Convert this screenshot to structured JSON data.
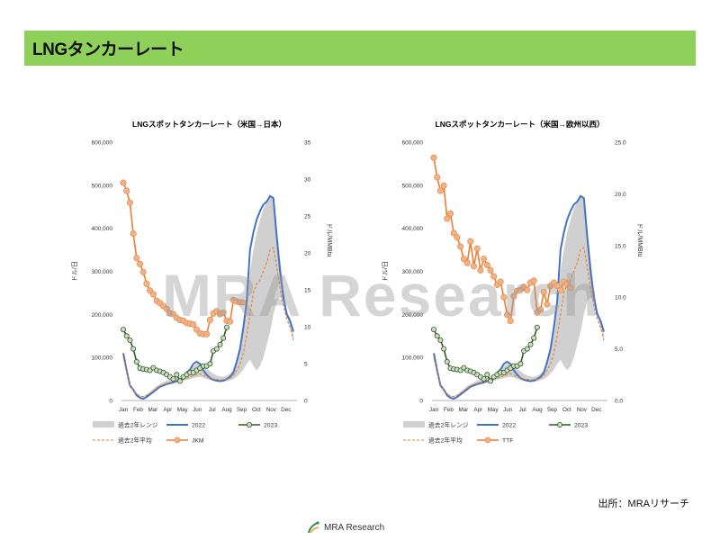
{
  "header": {
    "title": "LNGタンカーレート"
  },
  "watermark": "MRA Research",
  "source": "出所：MRAリサーチ",
  "footer": {
    "logo_text": "MRA Research"
  },
  "colors": {
    "header_bg": "#8fd05b",
    "range": "#d0d0d0",
    "y2022": "#4472c4",
    "y2023": "#375623",
    "avg": "#ed7d31",
    "price": "#ed7d31",
    "price_marker": "#f4b183"
  },
  "months": [
    "Jan",
    "Feb",
    "Mar",
    "Apr",
    "May",
    "Jun",
    "Jul",
    "Aug",
    "Sep",
    "Oct",
    "Nov",
    "Dec"
  ],
  "legend_labels": {
    "range": "過去2年レンジ",
    "y2022": "2022",
    "y2023": "2023",
    "avg": "過去2年平均"
  },
  "chart_data": [
    {
      "type": "line",
      "title": "LNGスポットタンカーレート（米国→日本）",
      "ylabel": "ドル/日",
      "y2label": "ドル/MMBtu",
      "ylim": [
        0,
        600000
      ],
      "y2lim": [
        0,
        35
      ],
      "yticks": [
        "0",
        "100,000",
        "200,000",
        "300,000",
        "400,000",
        "500,000",
        "600,000"
      ],
      "y2ticks": [
        "0",
        "5",
        "10",
        "15",
        "20",
        "25",
        "30",
        "35"
      ],
      "x_weeks": 52,
      "series": [
        {
          "name": "過去2年レンジ",
          "kind": "range",
          "upper": [
            110000,
            75000,
            40000,
            28000,
            18000,
            12000,
            10000,
            14000,
            20000,
            27000,
            34000,
            38000,
            42000,
            46000,
            48000,
            50000,
            53000,
            56000,
            60000,
            65000,
            72000,
            80000,
            85000,
            88000,
            82000,
            75000,
            68000,
            62000,
            58000,
            56000,
            55000,
            58000,
            62000,
            70000,
            90000,
            120000,
            170000,
            230000,
            300000,
            350000,
            390000,
            420000,
            445000,
            460000,
            475000,
            468000,
            400000,
            330000,
            260000,
            210000,
            190000,
            155000
          ],
          "lower": [
            95000,
            62000,
            33000,
            22000,
            13000,
            9000,
            8000,
            11000,
            16000,
            22000,
            27000,
            31000,
            34000,
            37000,
            39000,
            40000,
            42000,
            44000,
            46000,
            48000,
            50000,
            52000,
            54000,
            55000,
            53000,
            50000,
            48000,
            46000,
            45000,
            44000,
            44000,
            45000,
            47000,
            50000,
            55000,
            62000,
            72000,
            85000,
            95000,
            80000,
            70000,
            80000,
            100000,
            130000,
            160000,
            200000,
            230000,
            240000,
            230000,
            200000,
            170000,
            140000
          ]
        },
        {
          "name": "2022",
          "kind": "line",
          "values": [
            110000,
            70000,
            35000,
            25000,
            12000,
            6000,
            4000,
            8000,
            14000,
            20000,
            26000,
            32000,
            35000,
            38000,
            40000,
            42000,
            45000,
            48000,
            55000,
            65000,
            72000,
            85000,
            90000,
            85000,
            70000,
            60000,
            52000,
            48000,
            46000,
            45000,
            46000,
            50000,
            55000,
            65000,
            90000,
            120000,
            170000,
            230000,
            350000,
            390000,
            420000,
            440000,
            455000,
            462000,
            475000,
            470000,
            380000,
            300000,
            240000,
            200000,
            185000,
            160000
          ]
        },
        {
          "name": "過去2年平均",
          "kind": "dashed",
          "values": [
            100000,
            68000,
            36000,
            24000,
            14000,
            10000,
            9000,
            12000,
            17000,
            23000,
            29000,
            34000,
            37000,
            40000,
            42000,
            44000,
            46000,
            48000,
            50000,
            52000,
            54000,
            58000,
            60000,
            62000,
            58000,
            55000,
            52000,
            50000,
            49000,
            48000,
            48000,
            50000,
            52000,
            58000,
            70000,
            85000,
            110000,
            150000,
            200000,
            250000,
            270000,
            280000,
            300000,
            320000,
            350000,
            355000,
            310000,
            260000,
            220000,
            190000,
            170000,
            140000
          ]
        },
        {
          "name": "2023",
          "kind": "markers",
          "values": [
            165000,
            150000,
            140000,
            120000,
            90000,
            75000,
            73000,
            72000,
            70000,
            76000,
            70000,
            68000,
            65000,
            60000,
            55000,
            50000,
            60000,
            45000,
            55000,
            60000,
            65000,
            65000,
            70000,
            75000,
            80000,
            80000,
            85000,
            115000,
            120000,
            130000,
            145000,
            170000
          ]
        },
        {
          "name": "JKM",
          "kind": "price",
          "values": [
            29.5,
            28.4,
            26.8,
            22.6,
            19.3,
            18.5,
            17.4,
            15.8,
            14.9,
            14.4,
            13.5,
            13.2,
            12.8,
            12.4,
            11.8,
            11.7,
            11.2,
            10.9,
            10.8,
            10.5,
            10.4,
            10.3,
            9.6,
            9.1,
            9.0,
            9.0,
            10.9,
            11.8,
            12.1,
            11.7,
            11.9,
            10.8,
            10.7,
            13.6,
            13.4,
            13.3,
            13.3
          ]
        }
      ]
    },
    {
      "type": "line",
      "title": "LNGスポットタンカーレート（米国→欧州以西）",
      "ylabel": "ドル/日",
      "y2label": "ドル/MMBtu",
      "ylim": [
        0,
        600000
      ],
      "y2lim": [
        0,
        25
      ],
      "yticks": [
        "0",
        "100,000",
        "200,000",
        "300,000",
        "400,000",
        "500,000",
        "600,000"
      ],
      "y2ticks": [
        "0.0",
        "5.0",
        "10.0",
        "15.0",
        "20.0",
        "25.0"
      ],
      "x_weeks": 52,
      "series": [
        {
          "name": "過去2年レンジ",
          "kind": "range",
          "upper": [
            110000,
            75000,
            40000,
            28000,
            18000,
            12000,
            10000,
            14000,
            20000,
            27000,
            34000,
            38000,
            42000,
            46000,
            48000,
            50000,
            53000,
            56000,
            60000,
            65000,
            72000,
            80000,
            85000,
            88000,
            82000,
            75000,
            68000,
            62000,
            58000,
            56000,
            55000,
            58000,
            62000,
            70000,
            90000,
            120000,
            170000,
            230000,
            300000,
            350000,
            390000,
            420000,
            445000,
            460000,
            475000,
            468000,
            400000,
            330000,
            260000,
            210000,
            190000,
            155000
          ],
          "lower": [
            95000,
            62000,
            33000,
            22000,
            13000,
            9000,
            8000,
            11000,
            16000,
            22000,
            27000,
            31000,
            34000,
            37000,
            39000,
            40000,
            42000,
            44000,
            46000,
            48000,
            50000,
            52000,
            54000,
            55000,
            53000,
            50000,
            48000,
            46000,
            45000,
            44000,
            44000,
            45000,
            47000,
            50000,
            55000,
            62000,
            72000,
            85000,
            95000,
            80000,
            70000,
            80000,
            100000,
            130000,
            160000,
            200000,
            230000,
            240000,
            230000,
            200000,
            170000,
            140000
          ]
        },
        {
          "name": "2022",
          "kind": "line",
          "values": [
            110000,
            70000,
            35000,
            25000,
            12000,
            6000,
            4000,
            8000,
            14000,
            20000,
            26000,
            32000,
            35000,
            38000,
            40000,
            42000,
            45000,
            48000,
            55000,
            65000,
            72000,
            85000,
            90000,
            85000,
            70000,
            60000,
            52000,
            48000,
            46000,
            45000,
            46000,
            50000,
            55000,
            65000,
            90000,
            120000,
            170000,
            230000,
            350000,
            390000,
            420000,
            440000,
            455000,
            462000,
            475000,
            470000,
            380000,
            300000,
            240000,
            200000,
            185000,
            160000
          ]
        },
        {
          "name": "過去2年平均",
          "kind": "dashed",
          "values": [
            100000,
            68000,
            36000,
            24000,
            14000,
            10000,
            9000,
            12000,
            17000,
            23000,
            29000,
            34000,
            37000,
            40000,
            42000,
            44000,
            46000,
            48000,
            50000,
            52000,
            54000,
            58000,
            60000,
            62000,
            58000,
            55000,
            52000,
            50000,
            49000,
            48000,
            48000,
            50000,
            52000,
            58000,
            70000,
            85000,
            110000,
            150000,
            200000,
            250000,
            270000,
            280000,
            300000,
            320000,
            350000,
            355000,
            310000,
            260000,
            220000,
            190000,
            170000,
            140000
          ]
        },
        {
          "name": "2023",
          "kind": "markers",
          "values": [
            165000,
            150000,
            140000,
            120000,
            90000,
            75000,
            73000,
            72000,
            70000,
            76000,
            70000,
            68000,
            65000,
            60000,
            55000,
            50000,
            60000,
            45000,
            55000,
            60000,
            65000,
            65000,
            70000,
            75000,
            80000,
            80000,
            85000,
            115000,
            120000,
            130000,
            145000,
            170000
          ]
        },
        {
          "name": "TTF",
          "kind": "price",
          "values": [
            23.5,
            21.6,
            20.3,
            20.8,
            17.6,
            18.1,
            16.2,
            15.8,
            14.9,
            13.7,
            13.3,
            15.4,
            13.0,
            14.7,
            12.6,
            13.7,
            13.1,
            12.6,
            12.0,
            11.2,
            11.5,
            10.0,
            8.3,
            7.7,
            10.1,
            10.6,
            10.7,
            11.0,
            10.7,
            11.4,
            11.6,
            8.5,
            8.8,
            10.5,
            9.3,
            11.1,
            11.4,
            11.1,
            10.7,
            11.5,
            11.3,
            10.9
          ]
        }
      ]
    }
  ]
}
